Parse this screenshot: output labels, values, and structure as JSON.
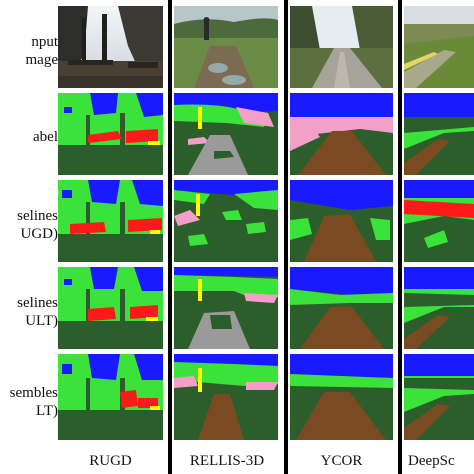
{
  "figure": {
    "row_labels": [
      [
        "nput",
        "mage"
      ],
      [
        "abel"
      ],
      [
        "selines",
        "UGD)"
      ],
      [
        "selines",
        "ULT)"
      ],
      [
        "sembles",
        "LT)"
      ]
    ],
    "column_labels": [
      "RUGD",
      "RELLIS-3D",
      "YCOR",
      "DeepSc"
    ]
  },
  "legend_colors": {
    "sky": "#1a1aff",
    "grass": "#3ae23a",
    "tree": "#2b5e2b",
    "dirt": "#7a4a22",
    "mulch": "#f2a0c8",
    "structure": "#ff1a1a",
    "pole": "#ffff00",
    "gravel": "#9a9a9a",
    "water": "#2a2a2a"
  }
}
